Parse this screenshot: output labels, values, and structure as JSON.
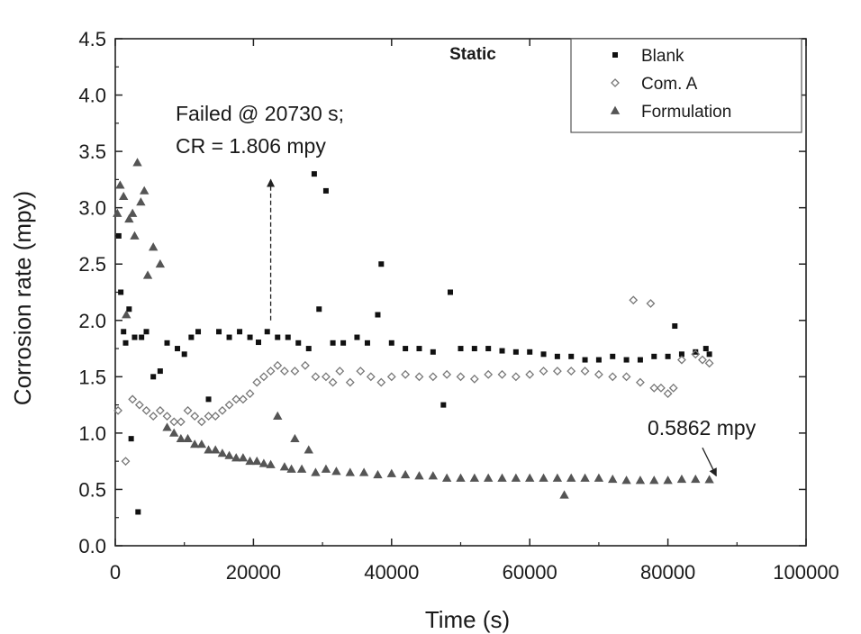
{
  "chart_data": {
    "type": "scatter",
    "title": "Static",
    "xlabel": "Time (s)",
    "ylabel": "Corrosion rate (mpy)",
    "xlim": [
      0,
      100000
    ],
    "ylim": [
      0,
      4.5
    ],
    "x_ticks": [
      0,
      20000,
      40000,
      60000,
      80000,
      100000
    ],
    "x_tick_labels": [
      "0",
      "20000",
      "40000",
      "60000",
      "80000",
      "100000"
    ],
    "y_ticks": [
      0.0,
      0.5,
      1.0,
      1.5,
      2.0,
      2.5,
      3.0,
      3.5,
      4.0,
      4.5
    ],
    "y_tick_labels": [
      "0.0",
      "0.5",
      "1.0",
      "1.5",
      "2.0",
      "2.5",
      "3.0",
      "3.5",
      "4.0",
      "4.5"
    ],
    "grid": false,
    "legend_position": "top-right",
    "annotations": [
      {
        "lines": [
          "Failed @ 20730 s;",
          "CR = 1.806 mpy"
        ],
        "arrow_from": [
          22500,
          2.0
        ],
        "arrow_to": [
          22500,
          3.25
        ]
      },
      {
        "lines": [
          "0.5862 mpy"
        ],
        "arrow_from": [
          85000,
          0.87
        ],
        "arrow_to": [
          87000,
          0.62
        ]
      }
    ],
    "series": [
      {
        "name": "Blank",
        "marker": "square",
        "color": "#111111",
        "points": [
          [
            500,
            2.75
          ],
          [
            800,
            2.25
          ],
          [
            1200,
            1.9
          ],
          [
            1500,
            1.8
          ],
          [
            2000,
            2.1
          ],
          [
            2300,
            0.95
          ],
          [
            2800,
            1.85
          ],
          [
            3300,
            0.3
          ],
          [
            3800,
            1.85
          ],
          [
            4500,
            1.9
          ],
          [
            5500,
            1.5
          ],
          [
            6500,
            1.55
          ],
          [
            7500,
            1.8
          ],
          [
            9000,
            1.75
          ],
          [
            10000,
            1.7
          ],
          [
            11000,
            1.85
          ],
          [
            12000,
            1.9
          ],
          [
            13500,
            1.3
          ],
          [
            15000,
            1.9
          ],
          [
            16500,
            1.85
          ],
          [
            18000,
            1.9
          ],
          [
            19500,
            1.85
          ],
          [
            20730,
            1.806
          ],
          [
            22000,
            1.9
          ],
          [
            23500,
            1.85
          ],
          [
            25000,
            1.85
          ],
          [
            26500,
            1.8
          ],
          [
            28000,
            1.75
          ],
          [
            28800,
            3.3
          ],
          [
            29500,
            2.1
          ],
          [
            30500,
            3.15
          ],
          [
            31500,
            1.8
          ],
          [
            33000,
            1.8
          ],
          [
            35000,
            1.85
          ],
          [
            36500,
            1.8
          ],
          [
            38000,
            2.05
          ],
          [
            38500,
            2.5
          ],
          [
            40000,
            1.8
          ],
          [
            42000,
            1.75
          ],
          [
            44000,
            1.75
          ],
          [
            46000,
            1.72
          ],
          [
            47500,
            1.25
          ],
          [
            48500,
            2.25
          ],
          [
            50000,
            1.75
          ],
          [
            52000,
            1.75
          ],
          [
            54000,
            1.75
          ],
          [
            56000,
            1.73
          ],
          [
            58000,
            1.72
          ],
          [
            60000,
            1.72
          ],
          [
            62000,
            1.7
          ],
          [
            64000,
            1.68
          ],
          [
            66000,
            1.68
          ],
          [
            68000,
            1.65
          ],
          [
            70000,
            1.65
          ],
          [
            72000,
            1.68
          ],
          [
            74000,
            1.65
          ],
          [
            76000,
            1.65
          ],
          [
            78000,
            1.68
          ],
          [
            80000,
            1.68
          ],
          [
            81000,
            1.95
          ],
          [
            82000,
            1.7
          ],
          [
            84000,
            1.72
          ],
          [
            85500,
            1.75
          ],
          [
            86000,
            1.7
          ]
        ]
      },
      {
        "name": "Com. A",
        "marker": "diamond",
        "color": "#777777",
        "points": [
          [
            400,
            1.2
          ],
          [
            1500,
            0.75
          ],
          [
            2500,
            1.3
          ],
          [
            3500,
            1.25
          ],
          [
            4500,
            1.2
          ],
          [
            5500,
            1.15
          ],
          [
            6500,
            1.2
          ],
          [
            7500,
            1.15
          ],
          [
            8500,
            1.1
          ],
          [
            9500,
            1.1
          ],
          [
            10500,
            1.2
          ],
          [
            11500,
            1.15
          ],
          [
            12500,
            1.1
          ],
          [
            13500,
            1.15
          ],
          [
            14500,
            1.15
          ],
          [
            15500,
            1.2
          ],
          [
            16500,
            1.25
          ],
          [
            17500,
            1.3
          ],
          [
            18500,
            1.3
          ],
          [
            19500,
            1.35
          ],
          [
            20500,
            1.45
          ],
          [
            21500,
            1.5
          ],
          [
            22500,
            1.55
          ],
          [
            23500,
            1.6
          ],
          [
            24500,
            1.55
          ],
          [
            26000,
            1.55
          ],
          [
            27500,
            1.6
          ],
          [
            29000,
            1.5
          ],
          [
            30500,
            1.5
          ],
          [
            31500,
            1.45
          ],
          [
            32500,
            1.55
          ],
          [
            34000,
            1.45
          ],
          [
            35500,
            1.55
          ],
          [
            37000,
            1.5
          ],
          [
            38500,
            1.45
          ],
          [
            40000,
            1.5
          ],
          [
            42000,
            1.52
          ],
          [
            44000,
            1.5
          ],
          [
            46000,
            1.5
          ],
          [
            48000,
            1.52
          ],
          [
            50000,
            1.5
          ],
          [
            52000,
            1.48
          ],
          [
            54000,
            1.52
          ],
          [
            56000,
            1.52
          ],
          [
            58000,
            1.5
          ],
          [
            60000,
            1.52
          ],
          [
            62000,
            1.55
          ],
          [
            64000,
            1.55
          ],
          [
            66000,
            1.55
          ],
          [
            68000,
            1.55
          ],
          [
            70000,
            1.52
          ],
          [
            72000,
            1.5
          ],
          [
            74000,
            1.5
          ],
          [
            75000,
            2.18
          ],
          [
            76000,
            1.45
          ],
          [
            77500,
            2.15
          ],
          [
            78000,
            1.4
          ],
          [
            79000,
            1.4
          ],
          [
            80000,
            1.35
          ],
          [
            80800,
            1.4
          ],
          [
            82000,
            1.65
          ],
          [
            84000,
            1.7
          ],
          [
            85000,
            1.65
          ],
          [
            86000,
            1.62
          ]
        ]
      },
      {
        "name": "Formulation",
        "marker": "triangle",
        "color": "#555555",
        "points": [
          [
            300,
            2.95
          ],
          [
            700,
            3.2
          ],
          [
            1200,
            3.1
          ],
          [
            1600,
            2.05
          ],
          [
            2000,
            2.9
          ],
          [
            2500,
            2.95
          ],
          [
            2800,
            2.75
          ],
          [
            3200,
            3.4
          ],
          [
            3700,
            3.05
          ],
          [
            4200,
            3.15
          ],
          [
            4700,
            2.4
          ],
          [
            5500,
            2.65
          ],
          [
            6500,
            2.5
          ],
          [
            7500,
            1.05
          ],
          [
            8500,
            1.0
          ],
          [
            9500,
            0.95
          ],
          [
            10500,
            0.95
          ],
          [
            11500,
            0.9
          ],
          [
            12500,
            0.9
          ],
          [
            13500,
            0.85
          ],
          [
            14500,
            0.85
          ],
          [
            15500,
            0.82
          ],
          [
            16500,
            0.8
          ],
          [
            17500,
            0.78
          ],
          [
            18500,
            0.78
          ],
          [
            19500,
            0.75
          ],
          [
            20500,
            0.75
          ],
          [
            21500,
            0.73
          ],
          [
            22500,
            0.72
          ],
          [
            23500,
            1.15
          ],
          [
            24500,
            0.7
          ],
          [
            25500,
            0.68
          ],
          [
            26000,
            0.95
          ],
          [
            27000,
            0.68
          ],
          [
            28000,
            0.85
          ],
          [
            29000,
            0.65
          ],
          [
            30500,
            0.68
          ],
          [
            32000,
            0.66
          ],
          [
            34000,
            0.65
          ],
          [
            36000,
            0.65
          ],
          [
            38000,
            0.63
          ],
          [
            40000,
            0.64
          ],
          [
            42000,
            0.63
          ],
          [
            44000,
            0.62
          ],
          [
            46000,
            0.62
          ],
          [
            48000,
            0.6
          ],
          [
            50000,
            0.6
          ],
          [
            52000,
            0.6
          ],
          [
            54000,
            0.6
          ],
          [
            56000,
            0.6
          ],
          [
            58000,
            0.6
          ],
          [
            60000,
            0.6
          ],
          [
            62000,
            0.6
          ],
          [
            64000,
            0.6
          ],
          [
            65000,
            0.45
          ],
          [
            66000,
            0.6
          ],
          [
            68000,
            0.6
          ],
          [
            70000,
            0.6
          ],
          [
            72000,
            0.59
          ],
          [
            74000,
            0.58
          ],
          [
            76000,
            0.58
          ],
          [
            78000,
            0.58
          ],
          [
            80000,
            0.58
          ],
          [
            82000,
            0.59
          ],
          [
            84000,
            0.59
          ],
          [
            86000,
            0.5862
          ]
        ]
      }
    ]
  }
}
